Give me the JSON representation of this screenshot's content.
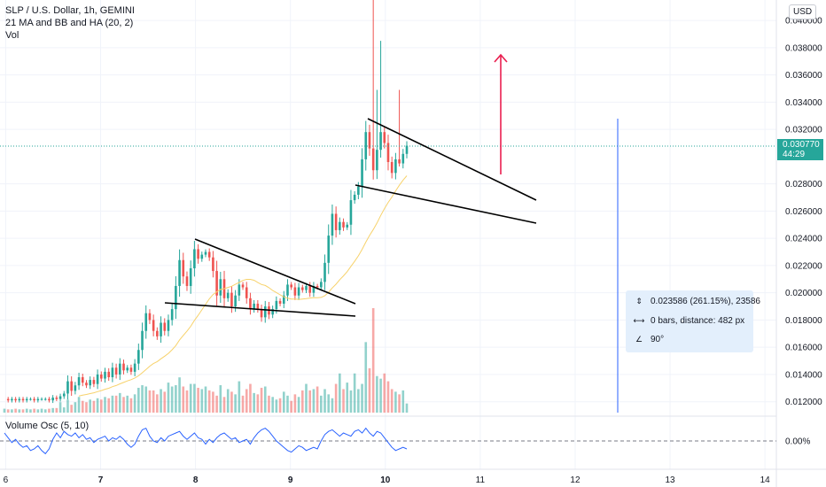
{
  "legend": {
    "symbol": "SLP / U.S. Dollar, 1h, GEMINI",
    "indicators": "21 MA and BB and HA (20, 2)",
    "volume": "Vol",
    "oscillator": "Volume Osc (5, 10)"
  },
  "price_axis": {
    "currency": "USD",
    "current_price": "0.030770",
    "countdown": "44:29"
  },
  "measure": {
    "price_change": "0.023586 (261.15%), 23586",
    "bars_distance": "0 bars, distance: 482 px",
    "angle": "90°",
    "icon_range": "vertical-range-icon",
    "icon_distance": "distance-icon",
    "icon_angle": "angle-icon"
  },
  "colors": {
    "up": "#26a69a",
    "down": "#ef5350",
    "ma": "#f7d26b",
    "oscillator": "#2962ff",
    "measure_line": "#2962ff",
    "arrow": "#e91e4f",
    "trendline": "#000000"
  },
  "chart_data": {
    "type": "candlestick",
    "title": "SLP / U.S. Dollar, 1h, GEMINI",
    "y_ticks": [
      "0.040000",
      "0.038000",
      "0.036000",
      "0.034000",
      "0.032000",
      "0.028000",
      "0.026000",
      "0.024000",
      "0.022000",
      "0.020000",
      "0.018000",
      "0.016000",
      "0.014000",
      "0.012000"
    ],
    "y_range": [
      0.0112,
      0.0415
    ],
    "x_ticks": [
      "6",
      "7",
      "8",
      "9",
      "10",
      "11",
      "12",
      "13",
      "14"
    ],
    "x_range": [
      5.94,
      14.12
    ],
    "current_price": 0.03077,
    "osc_ticks": [
      "0.00%"
    ],
    "price_tokens": [
      0.0122,
      0.0121,
      0.0122,
      0.0121,
      0.0122,
      0.0121,
      0.0122,
      0.0122,
      0.0121,
      0.0122,
      0.0122,
      0.0122,
      0.0121,
      0.0123,
      0.0122,
      0.0124,
      0.0126,
      0.0135,
      0.0128,
      0.0132,
      0.0138,
      0.0134,
      0.0132,
      0.0136,
      0.0133,
      0.014,
      0.0137,
      0.0142,
      0.0138,
      0.0145,
      0.014,
      0.0148,
      0.0143,
      0.0145,
      0.0142,
      0.0148,
      0.0158,
      0.0172,
      0.0185,
      0.018,
      0.0172,
      0.0168,
      0.0178,
      0.0172,
      0.018,
      0.0188,
      0.0205,
      0.0224,
      0.0212,
      0.0205,
      0.0218,
      0.0232,
      0.0225,
      0.0228,
      0.023,
      0.0226,
      0.0216,
      0.0198,
      0.021,
      0.0196,
      0.02,
      0.019,
      0.0198,
      0.0206,
      0.0204,
      0.0196,
      0.0188,
      0.0192,
      0.0188,
      0.0182,
      0.019,
      0.0184,
      0.0188,
      0.0194,
      0.0192,
      0.0198,
      0.0206,
      0.0204,
      0.0198,
      0.0204,
      0.0202,
      0.0205,
      0.02,
      0.0205,
      0.0204,
      0.0208,
      0.0222,
      0.0242,
      0.0258,
      0.0246,
      0.0252,
      0.0248,
      0.025,
      0.0268,
      0.0272,
      0.0278,
      0.0298,
      0.0318,
      0.0306,
      0.029,
      0.0305,
      0.0318,
      0.031,
      0.0296,
      0.0288,
      0.0298,
      0.0295,
      0.0302,
      0.0308
    ],
    "volume": [
      300,
      250,
      250,
      300,
      250,
      250,
      300,
      250,
      300,
      250,
      300,
      250,
      300,
      350,
      350,
      800,
      400,
      1000,
      600,
      800,
      1200,
      900,
      800,
      1000,
      900,
      1100,
      1000,
      1200,
      1100,
      1300,
      1300,
      1500,
      1200,
      1300,
      1100,
      1400,
      1900,
      2100,
      2000,
      1700,
      1700,
      1400,
      1800,
      1600,
      2300,
      2000,
      2100,
      2700,
      2000,
      1700,
      2200,
      2200,
      1900,
      1800,
      2000,
      1700,
      1600,
      1300,
      2100,
      1200,
      1800,
      1600,
      1400,
      2400,
      1300,
      1800,
      2200,
      1500,
      1400,
      1900,
      2000,
      1300,
      1200,
      1000,
      1100,
      1600,
      1300,
      900,
      1400,
      1200,
      1700,
      2200,
      1700,
      1800,
      2000,
      1300,
      1800,
      1400,
      1100,
      2200,
      3000,
      1800,
      2300,
      1700,
      3000,
      1800,
      2200,
      5400,
      3400,
      8000,
      2800,
      2600,
      3000,
      2400,
      1800,
      1600,
      1400,
      1700,
      700
    ],
    "oscillator": [
      0.5,
      0.2,
      -0.1,
      0.1,
      -0.2,
      -0.4,
      -0.3,
      -0.6,
      -0.5,
      -0.3,
      -0.6,
      -0.8,
      -0.5,
      0.1,
      0.5,
      0.2,
      0.6,
      0.4,
      0.3,
      0.5,
      0.2,
      0.4,
      0.1,
      0.2,
      -0.1,
      0.1,
      0.2,
      0.3,
      0.0,
      0.2,
      0.1,
      0.3,
      0.1,
      -0.2,
      -0.4,
      -0.2,
      0.3,
      0.7,
      0.8,
      0.3,
      0.0,
      -0.1,
      0.2,
      0.0,
      0.3,
      0.4,
      0.5,
      0.6,
      0.3,
      0.1,
      0.3,
      0.5,
      0.2,
      0.1,
      -0.2,
      0.1,
      -0.1,
      0.2,
      0.4,
      0.5,
      0.3,
      0.1,
      0.2,
      -0.1,
      0.0,
      0.1,
      -0.2,
      0.2,
      0.5,
      0.7,
      0.8,
      0.6,
      0.3,
      0.0,
      -0.2,
      -0.4,
      -0.6,
      -0.7,
      -0.5,
      -0.3,
      -0.4,
      -0.6,
      -0.5,
      -0.4,
      -0.5,
      0.0,
      0.4,
      0.6,
      0.7,
      0.5,
      0.3,
      0.5,
      0.4,
      0.3,
      0.6,
      0.7,
      0.5,
      0.8,
      0.5,
      0.3,
      0.6,
      0.5,
      0.2,
      -0.1,
      -0.4,
      -0.6,
      -0.5,
      -0.4,
      -0.5
    ]
  }
}
